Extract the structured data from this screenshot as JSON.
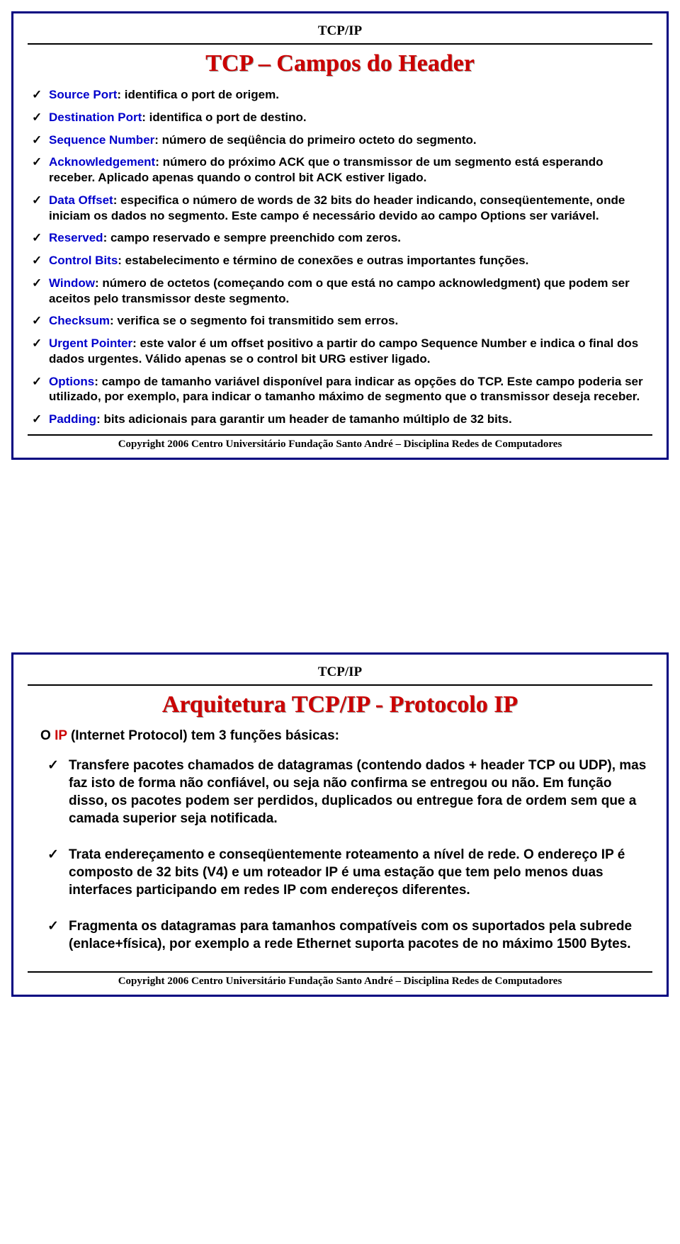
{
  "common": {
    "top_label": "TCP/IP",
    "footer": "Copyright 2006 Centro Universitário Fundação Santo André – Disciplina Redes de Computadores"
  },
  "colors": {
    "border": "#000080",
    "title": "#cc0000",
    "term": "#0000cc",
    "text": "#000000",
    "rule": "#000000",
    "background": "#ffffff"
  },
  "typography": {
    "title_fontsize": 34,
    "body_fontsize_slide1": 17,
    "body_fontsize_slide2": 19,
    "footer_fontsize": 15,
    "title_font": "Times New Roman",
    "body_font": "Arial"
  },
  "slide1": {
    "title": "TCP – Campos do Header",
    "items": [
      {
        "term": "Source Port",
        "desc": ": identifica o port de origem."
      },
      {
        "term": "Destination Port",
        "desc": ": identifica o port de destino."
      },
      {
        "term": "Sequence Number",
        "desc": ": número de seqüência do primeiro octeto do segmento."
      },
      {
        "term": "Acknowledgement",
        "desc": ": número do próximo ACK que o transmissor de um  segmento está esperando receber. Aplicado apenas quando o control bit ACK estiver ligado."
      },
      {
        "term": "Data Offset",
        "desc": ": especifica o número de words de 32 bits do header indicando, conseqüentemente, onde iniciam os dados no segmento. Este campo é necessário devido ao campo Options ser variável."
      },
      {
        "term": "Reserved",
        "desc": ": campo reservado e sempre preenchido com zeros."
      },
      {
        "term": "Control Bits",
        "desc": ": estabelecimento e término de conexões e outras importantes funções."
      },
      {
        "term": "Window",
        "desc": ": número de octetos (começando com o que está no campo acknowledgment) que podem ser aceitos pelo transmissor deste segmento."
      },
      {
        "term": "Checksum",
        "desc": ": verifica se o segmento foi transmitido sem erros."
      },
      {
        "term": "Urgent Pointer",
        "desc": ": este valor é um offset positivo a partir do campo Sequence Number e indica o final dos dados urgentes. Válido apenas se o control bit URG estiver ligado."
      },
      {
        "term": "Options",
        "desc": ": campo de tamanho variável disponível para indicar as opções do TCP. Este campo poderia ser utilizado, por exemplo, para indicar o tamanho máximo de segmento que o transmissor deseja receber."
      },
      {
        "term": "Padding",
        "desc": ": bits adicionais para garantir um header de tamanho múltiplo de 32 bits."
      }
    ]
  },
  "slide2": {
    "title": "Arquitetura TCP/IP - Protocolo IP",
    "intro_prefix": "O ",
    "intro_term": "IP",
    "intro_rest": " (Internet Protocol) tem 3 funções básicas:",
    "items": [
      "Transfere pacotes chamados de datagramas (contendo dados + header TCP ou UDP), mas faz isto de forma não confiável, ou seja não confirma se entregou ou não. Em função disso, os pacotes podem ser perdidos, duplicados ou entregue fora de ordem sem que a camada superior seja notificada.",
      "Trata endereçamento e conseqüentemente roteamento a nível de rede. O endereço IP é composto de 32 bits (V4) e um roteador IP é uma estação que tem pelo menos duas interfaces participando em redes IP com endereços diferentes.",
      "Fragmenta os datagramas para tamanhos compatíveis com os suportados pela subrede (enlace+física), por exemplo a rede Ethernet suporta pacotes de no máximo 1500 Bytes."
    ]
  }
}
